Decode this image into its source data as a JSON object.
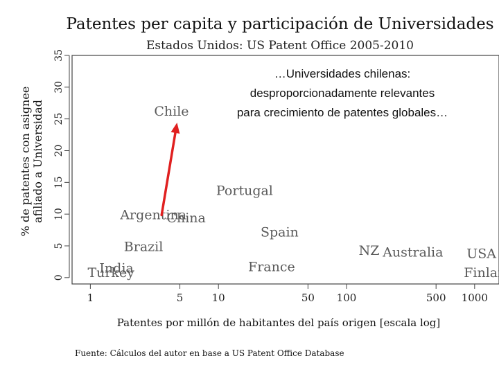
{
  "chart_data": {
    "type": "scatter",
    "title": "Patentes per capita y participación de Universidades",
    "subtitle": "Estados Unidos: US Patent Office 2005-2010",
    "xlabel": "Patentes por millón de habitantes del país origen [escala log]",
    "ylabel": "% de patentes con asignee afiliado a Universidad",
    "x_scale": "log",
    "x_ticks": [
      1,
      5,
      10,
      50,
      100,
      500,
      1000
    ],
    "y_ticks": [
      0,
      5,
      10,
      15,
      20,
      25,
      30,
      35
    ],
    "xlim": [
      0.72,
      1550
    ],
    "ylim": [
      -1,
      35
    ],
    "grid": false,
    "points": [
      {
        "label": "Chile",
        "x": 4.3,
        "y": 25.5
      },
      {
        "label": "Portugal",
        "x": 16,
        "y": 13
      },
      {
        "label": "Argentina",
        "x": 3.1,
        "y": 9.2
      },
      {
        "label": "China",
        "x": 5.6,
        "y": 8.7
      },
      {
        "label": "Spain",
        "x": 30,
        "y": 6.5
      },
      {
        "label": "Brazil",
        "x": 2.6,
        "y": 4.2
      },
      {
        "label": "NZ",
        "x": 150,
        "y": 3.6
      },
      {
        "label": "Australia",
        "x": 330,
        "y": 3.3
      },
      {
        "label": "USA",
        "x": 1130,
        "y": 3.1
      },
      {
        "label": "India",
        "x": 1.6,
        "y": 0.8
      },
      {
        "label": "Turkey",
        "x": 1.45,
        "y": 0.1
      },
      {
        "label": "France",
        "x": 26,
        "y": 1.0
      },
      {
        "label": "Finland",
        "x": 1300,
        "y": 0.1
      }
    ],
    "annotation": {
      "lines": [
        "…Universidades  chilenas:",
        "desproporcionadamente relevantes",
        "para crecimiento de patentes globales…"
      ],
      "arrow_target": "Chile",
      "arrow_color": "#e02020"
    },
    "source": "Fuente: Cálculos del autor en base a US Patent Office Database"
  }
}
